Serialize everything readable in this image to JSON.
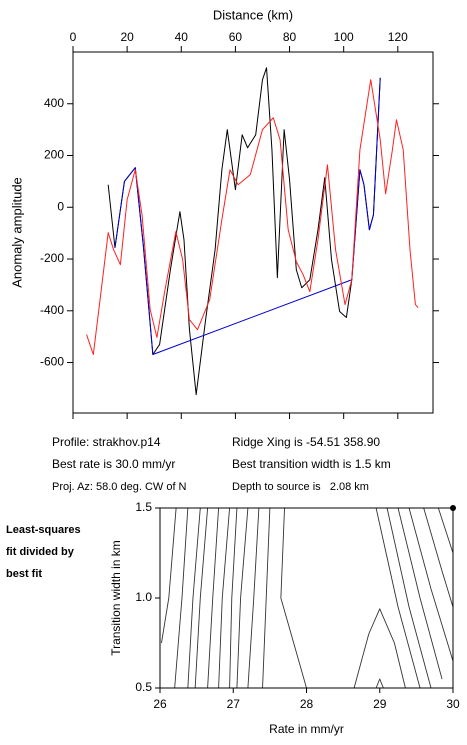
{
  "chart_data": [
    {
      "type": "line",
      "x_label": "Distance (km)",
      "y_label": "Anomaly amplitude",
      "xlim": [
        0,
        133
      ],
      "ylim": [
        -795,
        600
      ],
      "xticks": [
        0,
        20,
        40,
        60,
        80,
        100,
        120
      ],
      "yticks": [
        -600,
        -400,
        -200,
        0,
        200,
        400
      ],
      "series": [
        {
          "color": "#000000",
          "x": [
            13,
            15.5,
            19,
            23,
            26,
            29.5,
            32,
            36,
            39.5,
            41,
            43,
            45.5,
            49,
            52.5,
            55,
            57,
            60,
            62.5,
            64.5,
            67.5,
            70,
            71.5,
            73.5,
            75.5,
            78,
            80,
            82.5,
            84.5,
            87.5,
            90.5,
            93,
            95.5,
            98.5,
            101,
            103,
            106,
            107.5,
            109.5,
            111,
            113.5
          ],
          "values": [
            87,
            -156,
            100,
            153,
            -150,
            -569,
            -530,
            -240,
            -17,
            -125,
            -470,
            -724,
            -434,
            -164,
            145,
            300,
            68,
            280,
            230,
            280,
            493,
            539,
            222,
            -272,
            300,
            107,
            -241,
            -311,
            -280,
            -87,
            114,
            -202,
            -403,
            -426,
            -280,
            145,
            87,
            -87,
            -29,
            500
          ]
        },
        {
          "color": "#0000cc",
          "x": [
            15.5,
            19,
            23,
            26,
            29.5,
            103,
            106,
            107.5,
            109.5,
            111,
            113.5
          ],
          "values": [
            -156,
            100,
            153,
            -150,
            -569,
            -280,
            145,
            87,
            -87,
            -29,
            500
          ]
        },
        {
          "color": "#ff2020",
          "x": [
            5,
            7.5,
            10,
            13,
            15,
            17.5,
            20,
            23,
            25.5,
            28.5,
            31,
            34,
            38,
            40.5,
            43,
            46,
            50.5,
            55,
            58,
            61,
            65.5,
            70,
            74,
            76.5,
            79.5,
            82.5,
            85,
            87.5,
            90.5,
            94,
            97,
            100.5,
            103,
            106,
            110,
            113.5,
            115.5,
            118,
            119.5,
            122,
            124.5,
            126.5,
            127.5
          ],
          "values": [
            -492,
            -569,
            -357,
            -98,
            -164,
            -222,
            29,
            145,
            -29,
            -395,
            -503,
            -318,
            -94,
            -202,
            -434,
            -473,
            -357,
            -48,
            145,
            87,
            126,
            300,
            346,
            261,
            -87,
            -210,
            -260,
            -326,
            -125,
            164,
            -164,
            -376,
            -280,
            222,
            493,
            261,
            52,
            222,
            338,
            222,
            -164,
            -376,
            -388
          ]
        }
      ]
    },
    {
      "type": "contour",
      "x_label": "Rate in mm/yr",
      "y_label": "Transition width in km",
      "xlim": [
        26,
        30
      ],
      "ylim": [
        0.5,
        1.5
      ],
      "xticks": [
        26,
        27,
        28,
        29,
        30
      ],
      "yticks": [
        {
          "value": 0.5,
          "label": "0.5"
        },
        {
          "value": 1.0,
          "label": "1.0"
        },
        {
          "value": 1.5,
          "label": "1.5"
        }
      ],
      "best_fit": {
        "x": 30,
        "y": 1.5
      },
      "series": [
        {
          "x": [
            26.22,
            26.12,
            26.02
          ],
          "values": [
            1.5,
            1.0,
            0.75
          ]
        },
        {
          "x": [
            26.38,
            26.3,
            26.2
          ],
          "values": [
            1.5,
            1.0,
            0.5
          ]
        },
        {
          "x": [
            26.55,
            26.45,
            26.38
          ],
          "values": [
            1.5,
            1.0,
            0.5
          ]
        },
        {
          "x": [
            26.65,
            26.55,
            26.48
          ],
          "values": [
            1.5,
            1.0,
            0.5
          ]
        },
        {
          "x": [
            26.8,
            26.72,
            26.65
          ],
          "values": [
            1.5,
            1.0,
            0.5
          ]
        },
        {
          "x": [
            26.95,
            26.85,
            26.8
          ],
          "values": [
            1.5,
            1.0,
            0.5
          ]
        },
        {
          "x": [
            27.05,
            26.98,
            26.95
          ],
          "values": [
            1.5,
            1.0,
            0.5
          ]
        },
        {
          "x": [
            27.2,
            27.1,
            27.05
          ],
          "values": [
            1.5,
            1.0,
            0.5
          ]
        },
        {
          "x": [
            27.35,
            27.28,
            27.2
          ],
          "values": [
            1.5,
            1.0,
            0.5
          ]
        },
        {
          "x": [
            27.5,
            27.45,
            27.4
          ],
          "values": [
            1.5,
            1.0,
            0.5
          ]
        },
        {
          "x": [
            27.7,
            27.65,
            28.0
          ],
          "values": [
            1.5,
            1.0,
            0.5
          ]
        },
        {
          "x": [
            28.95,
            29.25,
            29.55
          ],
          "values": [
            1.5,
            0.95,
            0.5
          ]
        },
        {
          "x": [
            29.1,
            29.4,
            29.7
          ],
          "values": [
            1.5,
            0.95,
            0.5
          ]
        },
        {
          "x": [
            29.25,
            29.55,
            29.85
          ],
          "values": [
            1.5,
            1.0,
            0.55
          ]
        },
        {
          "x": [
            29.4,
            29.7,
            30.0
          ],
          "values": [
            1.5,
            1.05,
            0.65
          ]
        },
        {
          "x": [
            29.6,
            29.85,
            30.0
          ],
          "values": [
            1.5,
            1.15,
            0.95
          ]
        },
        {
          "x": [
            29.8,
            30.0
          ],
          "values": [
            1.5,
            1.25
          ]
        },
        {
          "x": [
            28.65,
            28.85,
            29.0,
            29.2,
            29.35
          ],
          "values": [
            0.5,
            0.8,
            0.94,
            0.75,
            0.5
          ]
        },
        {
          "x": [
            28.95,
            29.0,
            29.05
          ],
          "values": [
            0.5,
            0.55,
            0.5
          ]
        }
      ]
    }
  ],
  "info": {
    "profile": "Profile: strakhov.p14",
    "ridge": "Ridge Xing is -54.51 358.90",
    "rate": "Best rate is 30.0 mm/yr",
    "width": "Best transition width is 1.5 km",
    "az": "Proj. Az: 58.0 deg. CW of N",
    "depth": "Depth to source is   2.08 km"
  },
  "note": [
    "Least-squares",
    "fit divided by",
    "best fit"
  ]
}
